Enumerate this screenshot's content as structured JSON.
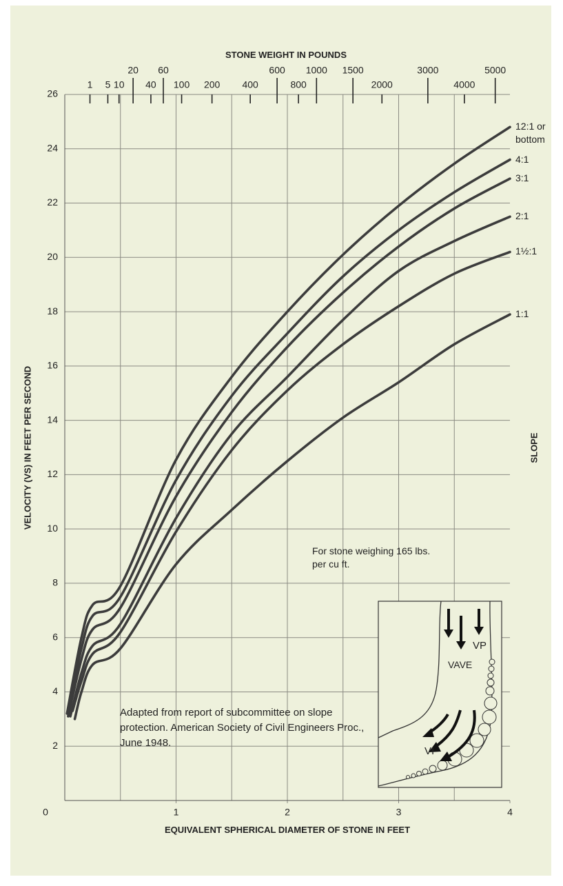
{
  "chart_data": {
    "type": "line",
    "x2label": "STONE WEIGHT IN POUNDS",
    "x2scale": "cbrt",
    "x2lim": [
      0,
      5530
    ],
    "x2ticks": [
      1,
      5,
      10,
      20,
      40,
      60,
      100,
      200,
      400,
      600,
      800,
      1000,
      1500,
      2000,
      3000,
      4000,
      5000
    ],
    "xlabel": "EQUIVALENT SPHERICAL DIAMETER OF STONE IN FEET",
    "ylabel": "VELOCITY (VS) IN FEET PER SECOND",
    "legend_title": "SLOPE",
    "xlim": [
      0,
      4
    ],
    "xticks": [
      0,
      1,
      2,
      3,
      4
    ],
    "xgrid": [
      0.5,
      1,
      1.5,
      2,
      2.5,
      3,
      3.5
    ],
    "ylim": [
      0,
      26
    ],
    "yticks": [
      2,
      4,
      6,
      8,
      10,
      12,
      14,
      16,
      18,
      20,
      22,
      24,
      26
    ],
    "grid": true,
    "series": [
      {
        "name": "12:1 or bottom",
        "color": "#3c3c3c",
        "x": [
          0.02,
          0.15,
          0.25,
          0.5,
          1,
          1.5,
          2,
          2.5,
          3,
          3.5,
          4
        ],
        "values": [
          3.2,
          6.0,
          7.2,
          7.9,
          12.55,
          15.6,
          18.0,
          20.1,
          21.9,
          23.45,
          24.8
        ]
      },
      {
        "name": "4:1",
        "color": "#3c3c3c",
        "x": [
          0.03,
          0.15,
          0.25,
          0.5,
          1,
          1.5,
          2,
          2.5,
          3,
          3.5,
          4
        ],
        "values": [
          3.3,
          5.6,
          6.8,
          7.5,
          11.8,
          14.9,
          17.2,
          19.3,
          21.0,
          22.4,
          23.6
        ]
      },
      {
        "name": "3:1",
        "color": "#3c3c3c",
        "x": [
          0.03,
          0.15,
          0.25,
          0.5,
          1,
          1.5,
          2,
          2.5,
          3,
          3.5,
          4
        ],
        "values": [
          3.1,
          5.2,
          6.3,
          7.1,
          11.2,
          14.3,
          16.7,
          18.7,
          20.4,
          21.8,
          22.9
        ]
      },
      {
        "name": "2:1",
        "color": "#3c3c3c",
        "x": [
          0.05,
          0.15,
          0.25,
          0.5,
          1,
          1.5,
          2,
          2.5,
          3,
          3.5,
          4
        ],
        "values": [
          3.1,
          4.7,
          5.7,
          6.5,
          10.4,
          13.5,
          15.6,
          17.7,
          19.5,
          20.6,
          21.5
        ]
      },
      {
        "name": "1½:1",
        "color": "#3c3c3c",
        "x": [
          0.07,
          0.15,
          0.25,
          0.5,
          1,
          1.5,
          2,
          2.5,
          3,
          3.5,
          4
        ],
        "values": [
          3.3,
          4.4,
          5.4,
          6.2,
          9.9,
          12.9,
          15.1,
          16.8,
          18.2,
          19.4,
          20.2
        ]
      },
      {
        "name": "1:1",
        "color": "#3c3c3c",
        "x": [
          0.09,
          0.15,
          0.25,
          0.5,
          1,
          1.5,
          2,
          2.5,
          3,
          3.5,
          4
        ],
        "values": [
          3.0,
          4.0,
          5.0,
          5.6,
          8.7,
          10.7,
          12.5,
          14.1,
          15.4,
          16.8,
          17.9
        ]
      }
    ],
    "annotations": [
      "For stone weighing 165 lbs. per cu ft.",
      "Adapted from report of subcommittee on slope protection. American Society of Civil Engineers Proc., June 1948."
    ],
    "inset_labels": [
      "VP",
      "VAVE",
      "VI"
    ]
  }
}
